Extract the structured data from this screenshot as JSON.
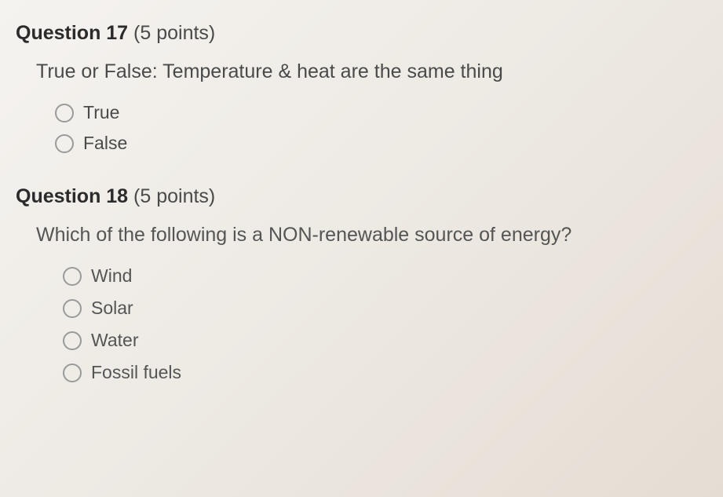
{
  "questions": [
    {
      "number_label": "Question 17",
      "points_label": "(5 points)",
      "text": "True or False: Temperature & heat are the same thing",
      "options": [
        {
          "label": "True"
        },
        {
          "label": "False"
        }
      ]
    },
    {
      "number_label": "Question 18",
      "points_label": "(5 points)",
      "text": "Which of the following is a NON-renewable source of energy?",
      "options": [
        {
          "label": "Wind"
        },
        {
          "label": "Solar"
        },
        {
          "label": "Water"
        },
        {
          "label": "Fossil fuels"
        }
      ]
    }
  ],
  "colors": {
    "background_start": "#f5f3f0",
    "background_end": "#e5ddd3",
    "text_primary": "#4a4a4a",
    "text_header": "#2b2b2b",
    "radio_border": "#9a9a9a"
  }
}
